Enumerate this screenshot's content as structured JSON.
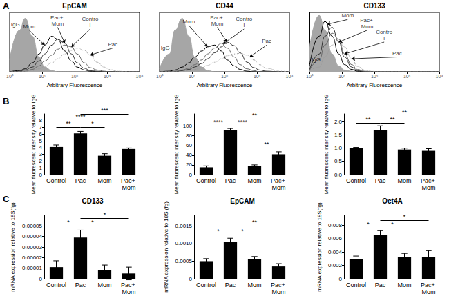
{
  "panel_labels": [
    "A",
    "B",
    "C"
  ],
  "chart_data": [
    {
      "type": "line",
      "title": "EpCAM",
      "xlabel": "Arbitrary Fluorescence",
      "log": "x",
      "tick_labels": "x",
      "grid": false,
      "xlim": [
        1,
        10000
      ],
      "xticks": [
        {
          "value": 1,
          "label": "10⁰"
        },
        {
          "value": 10,
          "label": "10¹"
        },
        {
          "value": 100,
          "label": "10²"
        },
        {
          "value": 1000,
          "label": "10³"
        },
        {
          "value": 10000,
          "label": "10⁴"
        }
      ],
      "ylim": [
        0,
        100
      ],
      "x": [
        1,
        2,
        3,
        5,
        8,
        12,
        20,
        30,
        50,
        80,
        120,
        200,
        300,
        500,
        800,
        1200,
        2000,
        5000,
        10000
      ],
      "series": [
        {
          "name": "IgG",
          "type": "area",
          "color": "#a6a6a6",
          "line_style": "solid",
          "values": [
            20,
            70,
            90,
            60,
            25,
            8,
            2,
            0,
            0,
            0,
            0,
            0,
            0,
            0,
            0,
            0,
            0,
            0,
            0
          ],
          "label_pos": [
            1.5,
            80
          ]
        },
        {
          "name": "Mom",
          "color": "#000000",
          "line_style": "solid",
          "values": [
            0,
            2,
            5,
            15,
            30,
            45,
            60,
            55,
            35,
            18,
            8,
            3,
            1,
            0,
            0,
            0,
            0,
            0,
            0
          ],
          "label_pos": [
            4,
            70
          ],
          "arrow_to": [
            12,
            45
          ]
        },
        {
          "name": "Pac+ Mom",
          "color": "#333333",
          "line_style": "solid",
          "values": [
            0,
            1,
            3,
            8,
            18,
            30,
            45,
            55,
            48,
            30,
            15,
            6,
            2,
            1,
            0,
            0,
            0,
            0,
            0
          ],
          "label_pos": [
            30,
            75
          ],
          "arrow_to": [
            50,
            48
          ]
        },
        {
          "name": "Control",
          "color": "#666666",
          "line_style": "solid",
          "values": [
            0,
            0,
            1,
            4,
            10,
            18,
            28,
            38,
            45,
            42,
            30,
            15,
            7,
            3,
            1,
            0,
            0,
            0,
            0
          ],
          "label_pos": [
            300,
            72
          ],
          "arrow_to": [
            80,
            42
          ]
        },
        {
          "name": "Pac",
          "color": "#999999",
          "line_style": "dotted",
          "values": [
            0,
            0,
            1,
            2,
            5,
            9,
            15,
            22,
            30,
            36,
            40,
            36,
            28,
            16,
            8,
            4,
            1,
            0,
            0
          ],
          "label_pos": [
            1500,
            40
          ],
          "arrow_to": [
            300,
            28
          ]
        }
      ]
    },
    {
      "type": "line",
      "title": "CD44",
      "xlabel": "Arbitrary Fluorescence",
      "log": "x",
      "tick_labels": "x",
      "grid": false,
      "xlim": [
        1,
        10000
      ],
      "xticks": [
        {
          "value": 1,
          "label": "10⁰"
        },
        {
          "value": 10,
          "label": "10¹"
        },
        {
          "value": 100,
          "label": "10²"
        },
        {
          "value": 1000,
          "label": "10³"
        },
        {
          "value": 10000,
          "label": "10⁴"
        }
      ],
      "ylim": [
        0,
        100
      ],
      "x": [
        1,
        2,
        3,
        5,
        8,
        12,
        20,
        30,
        50,
        80,
        120,
        200,
        300,
        500,
        800,
        1200,
        2000,
        5000,
        10000
      ],
      "series": [
        {
          "name": "IgG",
          "type": "area",
          "color": "#a6a6a6",
          "line_style": "solid",
          "values": [
            5,
            30,
            70,
            90,
            60,
            25,
            8,
            2,
            0,
            0,
            0,
            0,
            0,
            0,
            0,
            0,
            0,
            0,
            0
          ],
          "label_pos": [
            1.5,
            40
          ]
        },
        {
          "name": "Mom",
          "color": "#000000",
          "line_style": "solid",
          "values": [
            0,
            1,
            3,
            8,
            15,
            25,
            35,
            42,
            45,
            35,
            20,
            10,
            4,
            1,
            0,
            0,
            0,
            0,
            0
          ],
          "label_pos": [
            8,
            78
          ],
          "arrow_to": [
            30,
            42
          ]
        },
        {
          "name": "Pac+ Mom",
          "color": "#333333",
          "line_style": "solid",
          "values": [
            0,
            0,
            0,
            2,
            4,
            8,
            14,
            22,
            32,
            42,
            50,
            44,
            32,
            16,
            7,
            3,
            1,
            0,
            0
          ],
          "label_pos": [
            60,
            75
          ],
          "arrow_to": [
            120,
            50
          ]
        },
        {
          "name": "Control",
          "color": "#666666",
          "line_style": "solid",
          "values": [
            0,
            0,
            1,
            3,
            6,
            12,
            20,
            30,
            40,
            48,
            40,
            25,
            12,
            5,
            2,
            0,
            0,
            0,
            0
          ],
          "label_pos": [
            400,
            72
          ],
          "arrow_to": [
            90,
            47
          ]
        },
        {
          "name": "Pac",
          "color": "#999999",
          "line_style": "dotted",
          "values": [
            0,
            0,
            0,
            1,
            2,
            4,
            7,
            11,
            16,
            22,
            27,
            30,
            31,
            28,
            20,
            12,
            6,
            1,
            0
          ],
          "label_pos": [
            2000,
            45
          ],
          "arrow_to": [
            600,
            25
          ]
        }
      ]
    },
    {
      "type": "line",
      "title": "CD133",
      "xlabel": "Arbitrary Fluorescence",
      "log": "x",
      "tick_labels": "x",
      "grid": false,
      "xlim": [
        1,
        10000
      ],
      "xticks": [
        {
          "value": 1,
          "label": "10⁰"
        },
        {
          "value": 10,
          "label": "10¹"
        },
        {
          "value": 100,
          "label": "10²"
        },
        {
          "value": 1000,
          "label": "10³"
        },
        {
          "value": 10000,
          "label": "10⁴"
        }
      ],
      "ylim": [
        0,
        100
      ],
      "x": [
        1,
        2,
        3,
        5,
        8,
        12,
        20,
        30,
        50,
        80,
        120,
        200,
        300,
        500,
        800,
        1200,
        2000,
        5000,
        10000
      ],
      "series": [
        {
          "name": "IgG",
          "type": "area",
          "color": "#a6a6a6",
          "line_style": "solid",
          "values": [
            40,
            95,
            70,
            30,
            10,
            3,
            1,
            0,
            0,
            0,
            0,
            0,
            0,
            0,
            0,
            0,
            0,
            0,
            0
          ],
          "label_pos": [
            1.6,
            20
          ]
        },
        {
          "name": "Mom",
          "color": "#000000",
          "line_style": "solid",
          "values": [
            10,
            60,
            85,
            60,
            30,
            12,
            4,
            1,
            0,
            0,
            0,
            0,
            0,
            0,
            0,
            0,
            0,
            0,
            0
          ],
          "label_pos": [
            15,
            88
          ],
          "arrow_to": [
            3.5,
            80
          ]
        },
        {
          "name": "Pac+ Mom",
          "color": "#333333",
          "line_style": "solid",
          "values": [
            3,
            30,
            60,
            75,
            50,
            25,
            8,
            2,
            0,
            0,
            0,
            0,
            0,
            0,
            0,
            0,
            0,
            0,
            0
          ],
          "label_pos": [
            60,
            70
          ],
          "arrow_to": [
            8,
            50
          ]
        },
        {
          "name": "Control",
          "color": "#666666",
          "line_style": "solid",
          "values": [
            2,
            20,
            45,
            65,
            55,
            30,
            12,
            4,
            1,
            0,
            0,
            0,
            0,
            0,
            0,
            0,
            0,
            0,
            0
          ],
          "label_pos": [
            200,
            50
          ],
          "arrow_to": [
            12,
            30
          ]
        },
        {
          "name": "Pac",
          "color": "#999999",
          "line_style": "dotted",
          "values": [
            1,
            8,
            25,
            45,
            55,
            42,
            22,
            9,
            3,
            1,
            0,
            0,
            0,
            0,
            0,
            0,
            0,
            0,
            0
          ],
          "label_pos": [
            500,
            25
          ],
          "arrow_to": [
            20,
            22
          ]
        }
      ]
    },
    {
      "type": "bar",
      "ylabel": "Mean fluorescent intensity relative to IgG",
      "color": "#000000",
      "grid": false,
      "categories": [
        "Control",
        "Pac",
        "Mom",
        "Pac+ Mom"
      ],
      "values": [
        4.1,
        6.1,
        2.8,
        3.8
      ],
      "errors": [
        0.3,
        0.3,
        0.3,
        0.15
      ],
      "ylim": [
        0,
        9
      ],
      "yticks": [
        0,
        1,
        2,
        3,
        4,
        5,
        6,
        7,
        8
      ],
      "significance": [
        {
          "from": "Control",
          "to": "Pac",
          "label": "**",
          "y": 7.0
        },
        {
          "from": "Pac",
          "to": "Mom",
          "label": "*",
          "y": 7.0
        },
        {
          "from": "Control",
          "to": "Mom",
          "label": "****",
          "y": 8.0
        },
        {
          "from": "Pac",
          "to": "Pac+ Mom",
          "label": "***",
          "y": 9.0
        }
      ]
    },
    {
      "type": "bar",
      "ylabel": "Mean fluorescent intensity relative to IgG",
      "color": "#000000",
      "grid": false,
      "categories": [
        "Control",
        "Pac",
        "Mom",
        "Pac+ Mom"
      ],
      "values": [
        15,
        92,
        18,
        42
      ],
      "errors": [
        3,
        3,
        2,
        5
      ],
      "ylim": [
        0,
        125
      ],
      "yticks": [
        0,
        20,
        40,
        60,
        80,
        100
      ],
      "significance": [
        {
          "from": "Control",
          "to": "Pac",
          "label": "****",
          "y": 100
        },
        {
          "from": "Pac",
          "to": "Mom",
          "label": "****",
          "y": 100
        },
        {
          "from": "Mom",
          "to": "Pac+ Mom",
          "label": "**",
          "y": 55
        },
        {
          "from": "Pac",
          "to": "Pac+ Mom",
          "label": "**",
          "y": 114
        }
      ]
    },
    {
      "type": "bar",
      "ylabel": "Mean fluorescent intensity relative to IgG",
      "color": "#000000",
      "grid": false,
      "categories": [
        "Control",
        "Pac",
        "Mom",
        "Pac+ Mom"
      ],
      "values": [
        1.0,
        1.7,
        0.95,
        0.9
      ],
      "errors": [
        0.03,
        0.15,
        0.05,
        0.08
      ],
      "ylim": [
        0,
        2.3
      ],
      "yticks": [
        {
          "value": 0,
          "label": "0.0"
        },
        0.5,
        {
          "value": 1,
          "label": "1.0"
        },
        1.5,
        {
          "value": 2,
          "label": "2.0"
        }
      ],
      "significance": [
        {
          "from": "Control",
          "to": "Pac",
          "label": "**",
          "y": 1.95
        },
        {
          "from": "Pac",
          "to": "Mom",
          "label": "**",
          "y": 1.95
        },
        {
          "from": "Pac",
          "to": "Pac+ Mom",
          "label": "**",
          "y": 2.2
        }
      ]
    },
    {
      "type": "bar",
      "title": "CD133",
      "ylabel": "mRNA expression relative to 18S(fg)",
      "color": "#000000",
      "grid": false,
      "categories": [
        "Control",
        "Pac",
        "Mom",
        "Pac+ Mom"
      ],
      "values": [
        1.1e-05,
        3.9e-05,
        8e-06,
        5e-06
      ],
      "errors": [
        6e-06,
        7e-06,
        5e-06,
        6e-06
      ],
      "ylim": [
        0,
        6e-05
      ],
      "yticks": [
        0,
        1e-05,
        2e-05,
        3e-05,
        4e-05,
        5e-05
      ],
      "significance": [
        {
          "from": "Control",
          "to": "Pac",
          "label": "*",
          "y": 5e-05
        },
        {
          "from": "Pac",
          "to": "Mom",
          "label": "*",
          "y": 5e-05
        },
        {
          "from": "Pac",
          "to": "Pac+ Mom",
          "label": "*",
          "y": 5.7e-05
        }
      ]
    },
    {
      "type": "bar",
      "title": "EpCAM",
      "ylabel": "mRNA expression relative to 18S (fg)",
      "color": "#000000",
      "grid": false,
      "categories": [
        "Control",
        "Pac",
        "Mom",
        "Pac+ Mom"
      ],
      "values": [
        0.0005,
        0.00105,
        0.00055,
        0.00035
      ],
      "errors": [
        7e-05,
        0.0001,
        8e-05,
        8e-05
      ],
      "ylim": [
        0,
        0.0018
      ],
      "yticks": [
        0,
        0.0005,
        {
          "value": 0.001,
          "label": "0.0010"
        },
        0.0015
      ],
      "significance": [
        {
          "from": "Control",
          "to": "Pac",
          "label": "*",
          "y": 0.00125
        },
        {
          "from": "Pac",
          "to": "Mom",
          "label": "*",
          "y": 0.00125
        },
        {
          "from": "Pac",
          "to": "Pac+ Mom",
          "label": "**",
          "y": 0.0015
        }
      ]
    },
    {
      "type": "bar",
      "title": "Oct4A",
      "ylabel": "mRNA expression relative to 18S(fg)",
      "color": "#000000",
      "grid": false,
      "categories": [
        "Control",
        "Pac",
        "Mom",
        "Pac+ Mom"
      ],
      "values": [
        0.0029,
        0.0066,
        0.0032,
        0.0033
      ],
      "errors": [
        0.0005,
        0.0006,
        0.0006,
        0.0009
      ],
      "ylim": [
        0,
        0.0095
      ],
      "yticks": [
        0,
        0.002,
        0.004,
        0.006,
        0.008
      ],
      "significance": [
        {
          "from": "Control",
          "to": "Pac",
          "label": "*",
          "y": 0.0076
        },
        {
          "from": "Pac",
          "to": "Mom",
          "label": "*",
          "y": 0.0076
        },
        {
          "from": "Pac",
          "to": "Pac+ Mom",
          "label": "*",
          "y": 0.0087
        }
      ]
    }
  ]
}
